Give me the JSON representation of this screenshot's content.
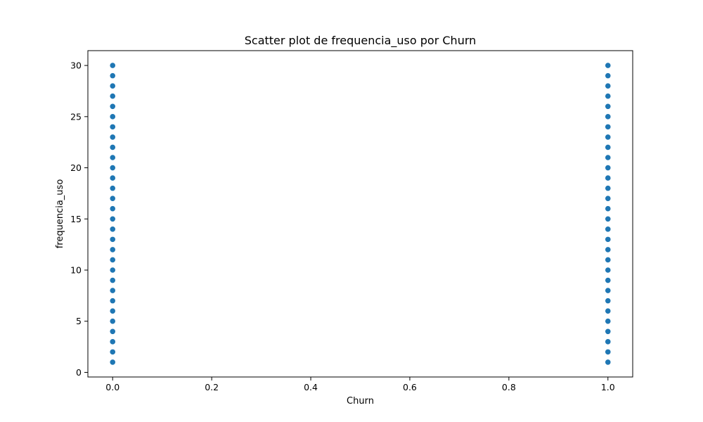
{
  "chart_data": {
    "type": "scatter",
    "title": "Scatter plot de frequencia_uso por Churn",
    "xlabel": "Churn",
    "ylabel": "frequencia_uso",
    "xlim": [
      -0.05,
      1.05
    ],
    "ylim": [
      -0.45,
      31.45
    ],
    "xticks": [
      0.0,
      0.2,
      0.4,
      0.6,
      0.8,
      1.0
    ],
    "xtick_labels": [
      "0.0",
      "0.2",
      "0.4",
      "0.6",
      "0.8",
      "1.0"
    ],
    "yticks": [
      0,
      5,
      10,
      15,
      20,
      25,
      30
    ],
    "ytick_labels": [
      "0",
      "5",
      "10",
      "15",
      "20",
      "25",
      "30"
    ],
    "grid": false,
    "marker_color": "#1f77b4",
    "points": [
      {
        "x": 0,
        "y": 1
      },
      {
        "x": 0,
        "y": 2
      },
      {
        "x": 0,
        "y": 3
      },
      {
        "x": 0,
        "y": 4
      },
      {
        "x": 0,
        "y": 5
      },
      {
        "x": 0,
        "y": 6
      },
      {
        "x": 0,
        "y": 7
      },
      {
        "x": 0,
        "y": 8
      },
      {
        "x": 0,
        "y": 9
      },
      {
        "x": 0,
        "y": 10
      },
      {
        "x": 0,
        "y": 11
      },
      {
        "x": 0,
        "y": 12
      },
      {
        "x": 0,
        "y": 13
      },
      {
        "x": 0,
        "y": 14
      },
      {
        "x": 0,
        "y": 15
      },
      {
        "x": 0,
        "y": 16
      },
      {
        "x": 0,
        "y": 17
      },
      {
        "x": 0,
        "y": 18
      },
      {
        "x": 0,
        "y": 19
      },
      {
        "x": 0,
        "y": 20
      },
      {
        "x": 0,
        "y": 21
      },
      {
        "x": 0,
        "y": 22
      },
      {
        "x": 0,
        "y": 23
      },
      {
        "x": 0,
        "y": 24
      },
      {
        "x": 0,
        "y": 25
      },
      {
        "x": 0,
        "y": 26
      },
      {
        "x": 0,
        "y": 27
      },
      {
        "x": 0,
        "y": 28
      },
      {
        "x": 0,
        "y": 29
      },
      {
        "x": 0,
        "y": 30
      },
      {
        "x": 1,
        "y": 1
      },
      {
        "x": 1,
        "y": 2
      },
      {
        "x": 1,
        "y": 3
      },
      {
        "x": 1,
        "y": 4
      },
      {
        "x": 1,
        "y": 5
      },
      {
        "x": 1,
        "y": 6
      },
      {
        "x": 1,
        "y": 7
      },
      {
        "x": 1,
        "y": 8
      },
      {
        "x": 1,
        "y": 9
      },
      {
        "x": 1,
        "y": 10
      },
      {
        "x": 1,
        "y": 11
      },
      {
        "x": 1,
        "y": 12
      },
      {
        "x": 1,
        "y": 13
      },
      {
        "x": 1,
        "y": 14
      },
      {
        "x": 1,
        "y": 15
      },
      {
        "x": 1,
        "y": 16
      },
      {
        "x": 1,
        "y": 17
      },
      {
        "x": 1,
        "y": 18
      },
      {
        "x": 1,
        "y": 19
      },
      {
        "x": 1,
        "y": 20
      },
      {
        "x": 1,
        "y": 21
      },
      {
        "x": 1,
        "y": 22
      },
      {
        "x": 1,
        "y": 23
      },
      {
        "x": 1,
        "y": 24
      },
      {
        "x": 1,
        "y": 25
      },
      {
        "x": 1,
        "y": 26
      },
      {
        "x": 1,
        "y": 27
      },
      {
        "x": 1,
        "y": 28
      },
      {
        "x": 1,
        "y": 29
      },
      {
        "x": 1,
        "y": 30
      }
    ]
  }
}
